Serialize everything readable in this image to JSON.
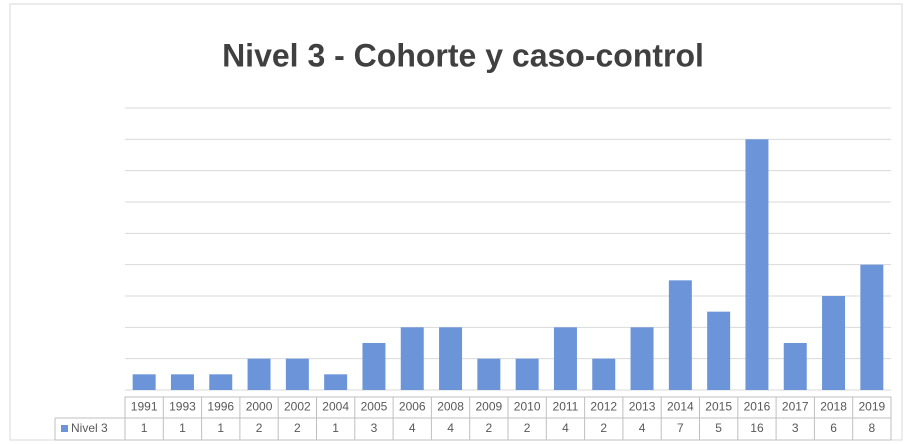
{
  "chart_data": {
    "type": "bar",
    "title": "Nivel 3 - Cohorte y caso-control",
    "categories": [
      "1991",
      "1993",
      "1996",
      "2000",
      "2002",
      "2004",
      "2005",
      "2006",
      "2008",
      "2009",
      "2010",
      "2011",
      "2012",
      "2013",
      "2014",
      "2015",
      "2016",
      "2017",
      "2018",
      "2019"
    ],
    "series": [
      {
        "name": "Nivel 3",
        "color": "#6b94d9",
        "values": [
          1,
          1,
          1,
          2,
          2,
          1,
          3,
          4,
          4,
          2,
          2,
          4,
          2,
          4,
          7,
          5,
          16,
          3,
          6,
          8
        ]
      }
    ],
    "ylim": [
      0,
      18
    ],
    "yticks": [
      0,
      2,
      4,
      6,
      8,
      10,
      12,
      14,
      16,
      18
    ],
    "grid": true,
    "data_table": true
  }
}
